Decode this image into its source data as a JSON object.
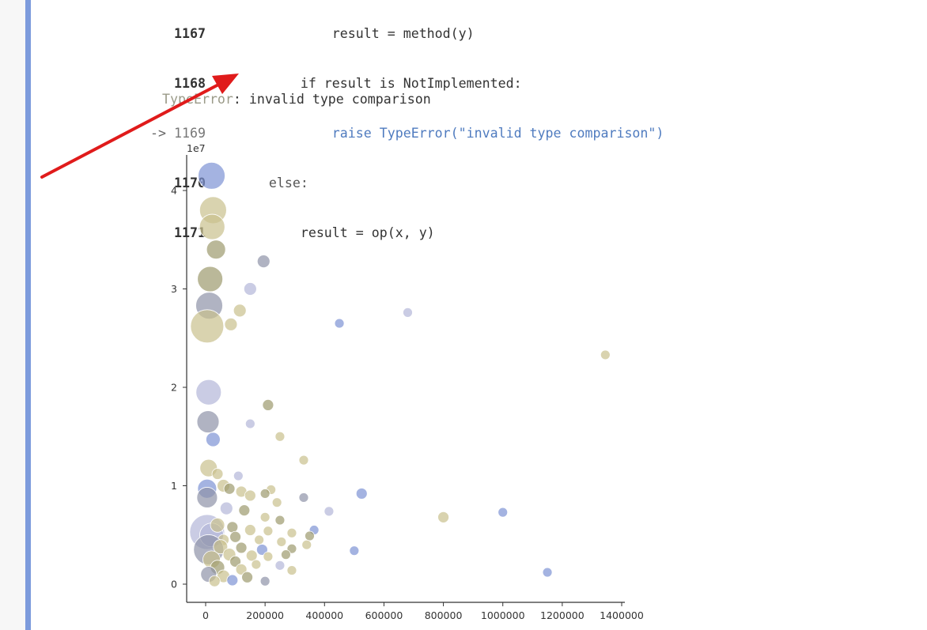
{
  "traceback": {
    "lines": [
      {
        "marker": "",
        "lineno": "1167",
        "code": "                result = method(y)"
      },
      {
        "marker": "",
        "lineno": "1168",
        "code": "            if result is NotImplemented:"
      },
      {
        "marker": "->",
        "lineno": "1169",
        "code": "                raise TypeError(\"invalid type comparison\")"
      },
      {
        "marker": "",
        "lineno": "1170",
        "code": "        else:"
      },
      {
        "marker": "",
        "lineno": "1171",
        "code": "            result = op(x, y)"
      }
    ],
    "error_name": "TypeError",
    "error_message": ": invalid type comparison"
  },
  "annotation": {
    "arrow_color": "#e01b1b"
  },
  "chart_data": {
    "type": "scatter",
    "title": "",
    "xlabel": "",
    "ylabel": "",
    "offset_label": "1e7",
    "xlim": [
      -60000,
      1450000
    ],
    "ylim": [
      -1800000,
      44000000
    ],
    "xticks": [
      0,
      200000,
      400000,
      600000,
      800000,
      1000000,
      1200000,
      1400000
    ],
    "xtick_labels": [
      "0",
      "200000",
      "400000",
      "600000",
      "800000",
      "1000000",
      "1200000",
      "1400000"
    ],
    "yticks": [
      0,
      10000000,
      20000000,
      30000000,
      40000000
    ],
    "ytick_labels": [
      "0",
      "1",
      "2",
      "3",
      "4"
    ],
    "grid": false,
    "colors": {
      "tan": "#c9c08d",
      "blue": "#7d93d4",
      "lavender": "#b3b7d8",
      "olive": "#9d9a6e",
      "gray": "#8f93a8"
    },
    "points": [
      {
        "x": 20000,
        "y": 41500000,
        "size": 17,
        "color": "blue"
      },
      {
        "x": 25000,
        "y": 38000000,
        "size": 17,
        "color": "tan"
      },
      {
        "x": 22000,
        "y": 36300000,
        "size": 16,
        "color": "tan"
      },
      {
        "x": 35000,
        "y": 34000000,
        "size": 12,
        "color": "olive"
      },
      {
        "x": 195000,
        "y": 32800000,
        "size": 8,
        "color": "gray"
      },
      {
        "x": 15000,
        "y": 31000000,
        "size": 16,
        "color": "olive"
      },
      {
        "x": 150000,
        "y": 30000000,
        "size": 8,
        "color": "lavender"
      },
      {
        "x": 12000,
        "y": 28300000,
        "size": 17,
        "color": "gray"
      },
      {
        "x": 115000,
        "y": 27800000,
        "size": 8,
        "color": "tan"
      },
      {
        "x": 680000,
        "y": 27600000,
        "size": 6,
        "color": "lavender"
      },
      {
        "x": 5000,
        "y": 26200000,
        "size": 21,
        "color": "tan"
      },
      {
        "x": 85000,
        "y": 26400000,
        "size": 8,
        "color": "tan"
      },
      {
        "x": 450000,
        "y": 26500000,
        "size": 6,
        "color": "blue"
      },
      {
        "x": 1345000,
        "y": 23300000,
        "size": 6,
        "color": "tan"
      },
      {
        "x": 10000,
        "y": 19500000,
        "size": 16,
        "color": "lavender"
      },
      {
        "x": 210000,
        "y": 18200000,
        "size": 7,
        "color": "olive"
      },
      {
        "x": 8000,
        "y": 16500000,
        "size": 14,
        "color": "gray"
      },
      {
        "x": 150000,
        "y": 16300000,
        "size": 6,
        "color": "lavender"
      },
      {
        "x": 250000,
        "y": 15000000,
        "size": 6,
        "color": "tan"
      },
      {
        "x": 25000,
        "y": 14700000,
        "size": 9,
        "color": "blue"
      },
      {
        "x": 330000,
        "y": 12600000,
        "size": 6,
        "color": "tan"
      },
      {
        "x": 10000,
        "y": 11800000,
        "size": 11,
        "color": "tan"
      },
      {
        "x": 40000,
        "y": 11200000,
        "size": 7,
        "color": "tan"
      },
      {
        "x": 110000,
        "y": 11000000,
        "size": 6,
        "color": "lavender"
      },
      {
        "x": 5000,
        "y": 9700000,
        "size": 12,
        "color": "blue"
      },
      {
        "x": 60000,
        "y": 10000000,
        "size": 8,
        "color": "tan"
      },
      {
        "x": 80000,
        "y": 9700000,
        "size": 7,
        "color": "olive"
      },
      {
        "x": 120000,
        "y": 9400000,
        "size": 7,
        "color": "tan"
      },
      {
        "x": 150000,
        "y": 9000000,
        "size": 7,
        "color": "tan"
      },
      {
        "x": 220000,
        "y": 9600000,
        "size": 6,
        "color": "tan"
      },
      {
        "x": 200000,
        "y": 9200000,
        "size": 6,
        "color": "olive"
      },
      {
        "x": 5000,
        "y": 8800000,
        "size": 13,
        "color": "gray"
      },
      {
        "x": 330000,
        "y": 8800000,
        "size": 6,
        "color": "gray"
      },
      {
        "x": 525000,
        "y": 9200000,
        "size": 7,
        "color": "blue"
      },
      {
        "x": 240000,
        "y": 8300000,
        "size": 6,
        "color": "tan"
      },
      {
        "x": 70000,
        "y": 7700000,
        "size": 8,
        "color": "lavender"
      },
      {
        "x": 130000,
        "y": 7500000,
        "size": 7,
        "color": "olive"
      },
      {
        "x": 415000,
        "y": 7400000,
        "size": 6,
        "color": "lavender"
      },
      {
        "x": 1000000,
        "y": 7300000,
        "size": 6,
        "color": "blue"
      },
      {
        "x": 800000,
        "y": 6800000,
        "size": 7,
        "color": "tan"
      },
      {
        "x": 200000,
        "y": 6800000,
        "size": 6,
        "color": "tan"
      },
      {
        "x": 250000,
        "y": 6500000,
        "size": 6,
        "color": "olive"
      },
      {
        "x": 5000,
        "y": 5300000,
        "size": 22,
        "color": "lavender"
      },
      {
        "x": 20000,
        "y": 5000000,
        "size": 15,
        "color": "lavender"
      },
      {
        "x": 40000,
        "y": 6000000,
        "size": 9,
        "color": "tan"
      },
      {
        "x": 90000,
        "y": 5800000,
        "size": 7,
        "color": "olive"
      },
      {
        "x": 150000,
        "y": 5500000,
        "size": 7,
        "color": "tan"
      },
      {
        "x": 210000,
        "y": 5400000,
        "size": 6,
        "color": "tan"
      },
      {
        "x": 290000,
        "y": 5200000,
        "size": 6,
        "color": "tan"
      },
      {
        "x": 365000,
        "y": 5500000,
        "size": 6,
        "color": "blue"
      },
      {
        "x": 350000,
        "y": 4900000,
        "size": 6,
        "color": "olive"
      },
      {
        "x": 100000,
        "y": 4800000,
        "size": 7,
        "color": "olive"
      },
      {
        "x": 60000,
        "y": 4500000,
        "size": 7,
        "color": "tan"
      },
      {
        "x": 180000,
        "y": 4500000,
        "size": 6,
        "color": "tan"
      },
      {
        "x": 255000,
        "y": 4300000,
        "size": 6,
        "color": "tan"
      },
      {
        "x": 340000,
        "y": 4000000,
        "size": 6,
        "color": "tan"
      },
      {
        "x": 10000,
        "y": 3500000,
        "size": 19,
        "color": "gray"
      },
      {
        "x": 50000,
        "y": 3800000,
        "size": 9,
        "color": "tan"
      },
      {
        "x": 120000,
        "y": 3700000,
        "size": 7,
        "color": "olive"
      },
      {
        "x": 190000,
        "y": 3500000,
        "size": 7,
        "color": "blue"
      },
      {
        "x": 290000,
        "y": 3600000,
        "size": 6,
        "color": "olive"
      },
      {
        "x": 500000,
        "y": 3400000,
        "size": 6,
        "color": "blue"
      },
      {
        "x": 80000,
        "y": 3000000,
        "size": 8,
        "color": "tan"
      },
      {
        "x": 155000,
        "y": 2900000,
        "size": 7,
        "color": "tan"
      },
      {
        "x": 210000,
        "y": 2800000,
        "size": 6,
        "color": "tan"
      },
      {
        "x": 270000,
        "y": 3000000,
        "size": 6,
        "color": "olive"
      },
      {
        "x": 20000,
        "y": 2500000,
        "size": 11,
        "color": "tan"
      },
      {
        "x": 100000,
        "y": 2300000,
        "size": 7,
        "color": "olive"
      },
      {
        "x": 170000,
        "y": 2000000,
        "size": 6,
        "color": "tan"
      },
      {
        "x": 250000,
        "y": 1900000,
        "size": 6,
        "color": "lavender"
      },
      {
        "x": 40000,
        "y": 1700000,
        "size": 9,
        "color": "olive"
      },
      {
        "x": 120000,
        "y": 1500000,
        "size": 7,
        "color": "tan"
      },
      {
        "x": 290000,
        "y": 1400000,
        "size": 6,
        "color": "tan"
      },
      {
        "x": 1150000,
        "y": 1200000,
        "size": 6,
        "color": "blue"
      },
      {
        "x": 10000,
        "y": 1000000,
        "size": 10,
        "color": "gray"
      },
      {
        "x": 60000,
        "y": 800000,
        "size": 8,
        "color": "tan"
      },
      {
        "x": 140000,
        "y": 700000,
        "size": 7,
        "color": "olive"
      },
      {
        "x": 30000,
        "y": 300000,
        "size": 7,
        "color": "tan"
      },
      {
        "x": 90000,
        "y": 400000,
        "size": 7,
        "color": "blue"
      },
      {
        "x": 200000,
        "y": 300000,
        "size": 6,
        "color": "gray"
      }
    ]
  }
}
